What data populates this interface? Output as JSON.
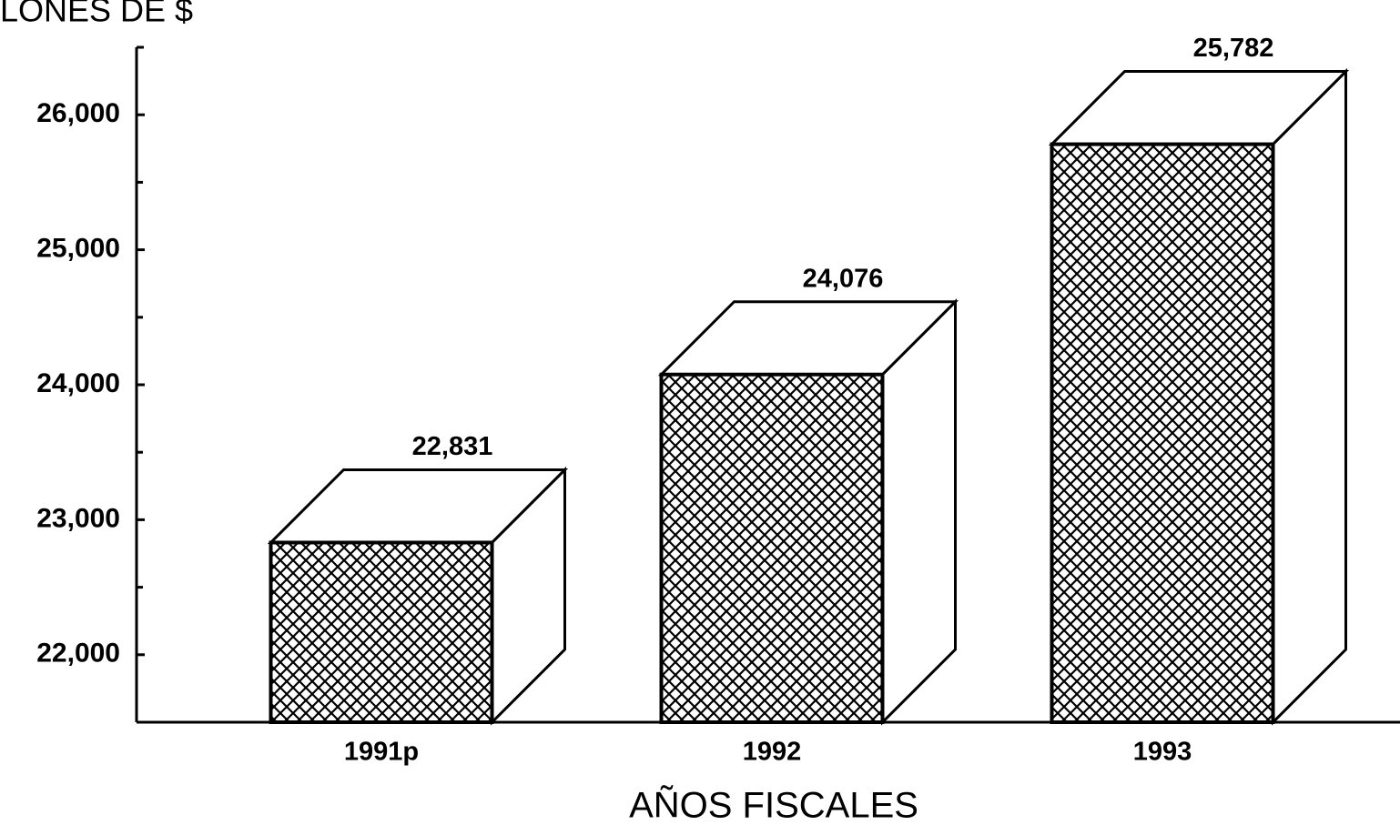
{
  "chart_data": {
    "type": "bar3d",
    "y_axis_label": "LONES DE $",
    "x_axis_label": "AÑOS FISCALES",
    "categories": [
      "1991p",
      "1992",
      "1993"
    ],
    "values": [
      22831,
      24076,
      25782
    ],
    "value_labels": [
      "22,831",
      "24,076",
      "25,782"
    ],
    "ylim": [
      21500,
      26500
    ],
    "yticks": [
      {
        "value": 22000,
        "label": "22,000"
      },
      {
        "value": 23000,
        "label": "23,000"
      },
      {
        "value": 24000,
        "label": "24,000"
      },
      {
        "value": 25000,
        "label": "25,000"
      },
      {
        "value": 26000,
        "label": "26,000"
      }
    ],
    "yminorticks": [
      22500,
      23500,
      24500,
      25500
    ],
    "color": "#000000"
  }
}
